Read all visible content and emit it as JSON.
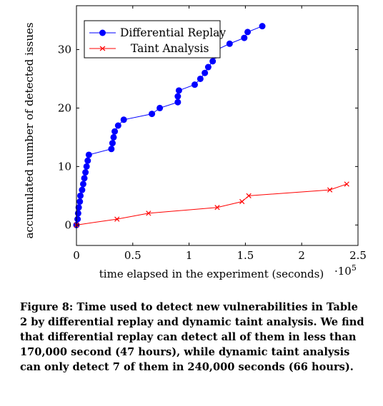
{
  "chart_data": {
    "type": "line",
    "xlabel": "time elapsed in the experiment (seconds)",
    "ylabel": "accumulated number of detected issues",
    "x_scale_label": "·10",
    "x_scale_exponent": "5",
    "xlim": [
      0,
      2.5
    ],
    "ylim": [
      -3.5,
      37.5
    ],
    "x_ticks": [
      0,
      0.5,
      1,
      1.5,
      2,
      2.5
    ],
    "x_tick_labels": [
      "0",
      "0.5",
      "1",
      "1.5",
      "2",
      "2.5"
    ],
    "y_ticks": [
      0,
      10,
      20,
      30
    ],
    "y_tick_labels": [
      "0",
      "10",
      "20",
      "30"
    ],
    "grid": false,
    "legend_position": "top-left",
    "series": [
      {
        "name": "Differential Replay",
        "color": "#0000ff",
        "marker": "circle",
        "points": [
          [
            0,
            0
          ],
          [
            0.01,
            1
          ],
          [
            0.015,
            2
          ],
          [
            0.02,
            3
          ],
          [
            0.03,
            4
          ],
          [
            0.035,
            5
          ],
          [
            0.05,
            6
          ],
          [
            0.06,
            7
          ],
          [
            0.07,
            8
          ],
          [
            0.08,
            9
          ],
          [
            0.09,
            10
          ],
          [
            0.1,
            11
          ],
          [
            0.11,
            12
          ],
          [
            0.31,
            13
          ],
          [
            0.32,
            14
          ],
          [
            0.33,
            15
          ],
          [
            0.34,
            16
          ],
          [
            0.37,
            17
          ],
          [
            0.42,
            18
          ],
          [
            0.67,
            19
          ],
          [
            0.74,
            20
          ],
          [
            0.9,
            21
          ],
          [
            0.9,
            22
          ],
          [
            0.91,
            23
          ],
          [
            1.05,
            24
          ],
          [
            1.1,
            25
          ],
          [
            1.14,
            26
          ],
          [
            1.17,
            27
          ],
          [
            1.21,
            28
          ],
          [
            1.23,
            29
          ],
          [
            1.25,
            30
          ],
          [
            1.36,
            31
          ],
          [
            1.49,
            32
          ],
          [
            1.52,
            33
          ],
          [
            1.65,
            34
          ]
        ]
      },
      {
        "name": "Taint Analysis",
        "color": "#ff0000",
        "marker": "x",
        "points": [
          [
            0,
            0
          ],
          [
            0.36,
            1
          ],
          [
            0.64,
            2
          ],
          [
            1.25,
            3
          ],
          [
            1.47,
            4
          ],
          [
            1.53,
            5
          ],
          [
            2.25,
            6
          ],
          [
            2.4,
            7
          ]
        ]
      }
    ]
  },
  "caption": "Figure 8: Time used to detect new vulnerabilities in Table 2 by differential replay and dynamic taint analysis. We find that differential replay can detect all of them in less than 170,000 second (47 hours), while dynamic taint analysis can only detect 7 of them in 240,000 seconds (66 hours)."
}
